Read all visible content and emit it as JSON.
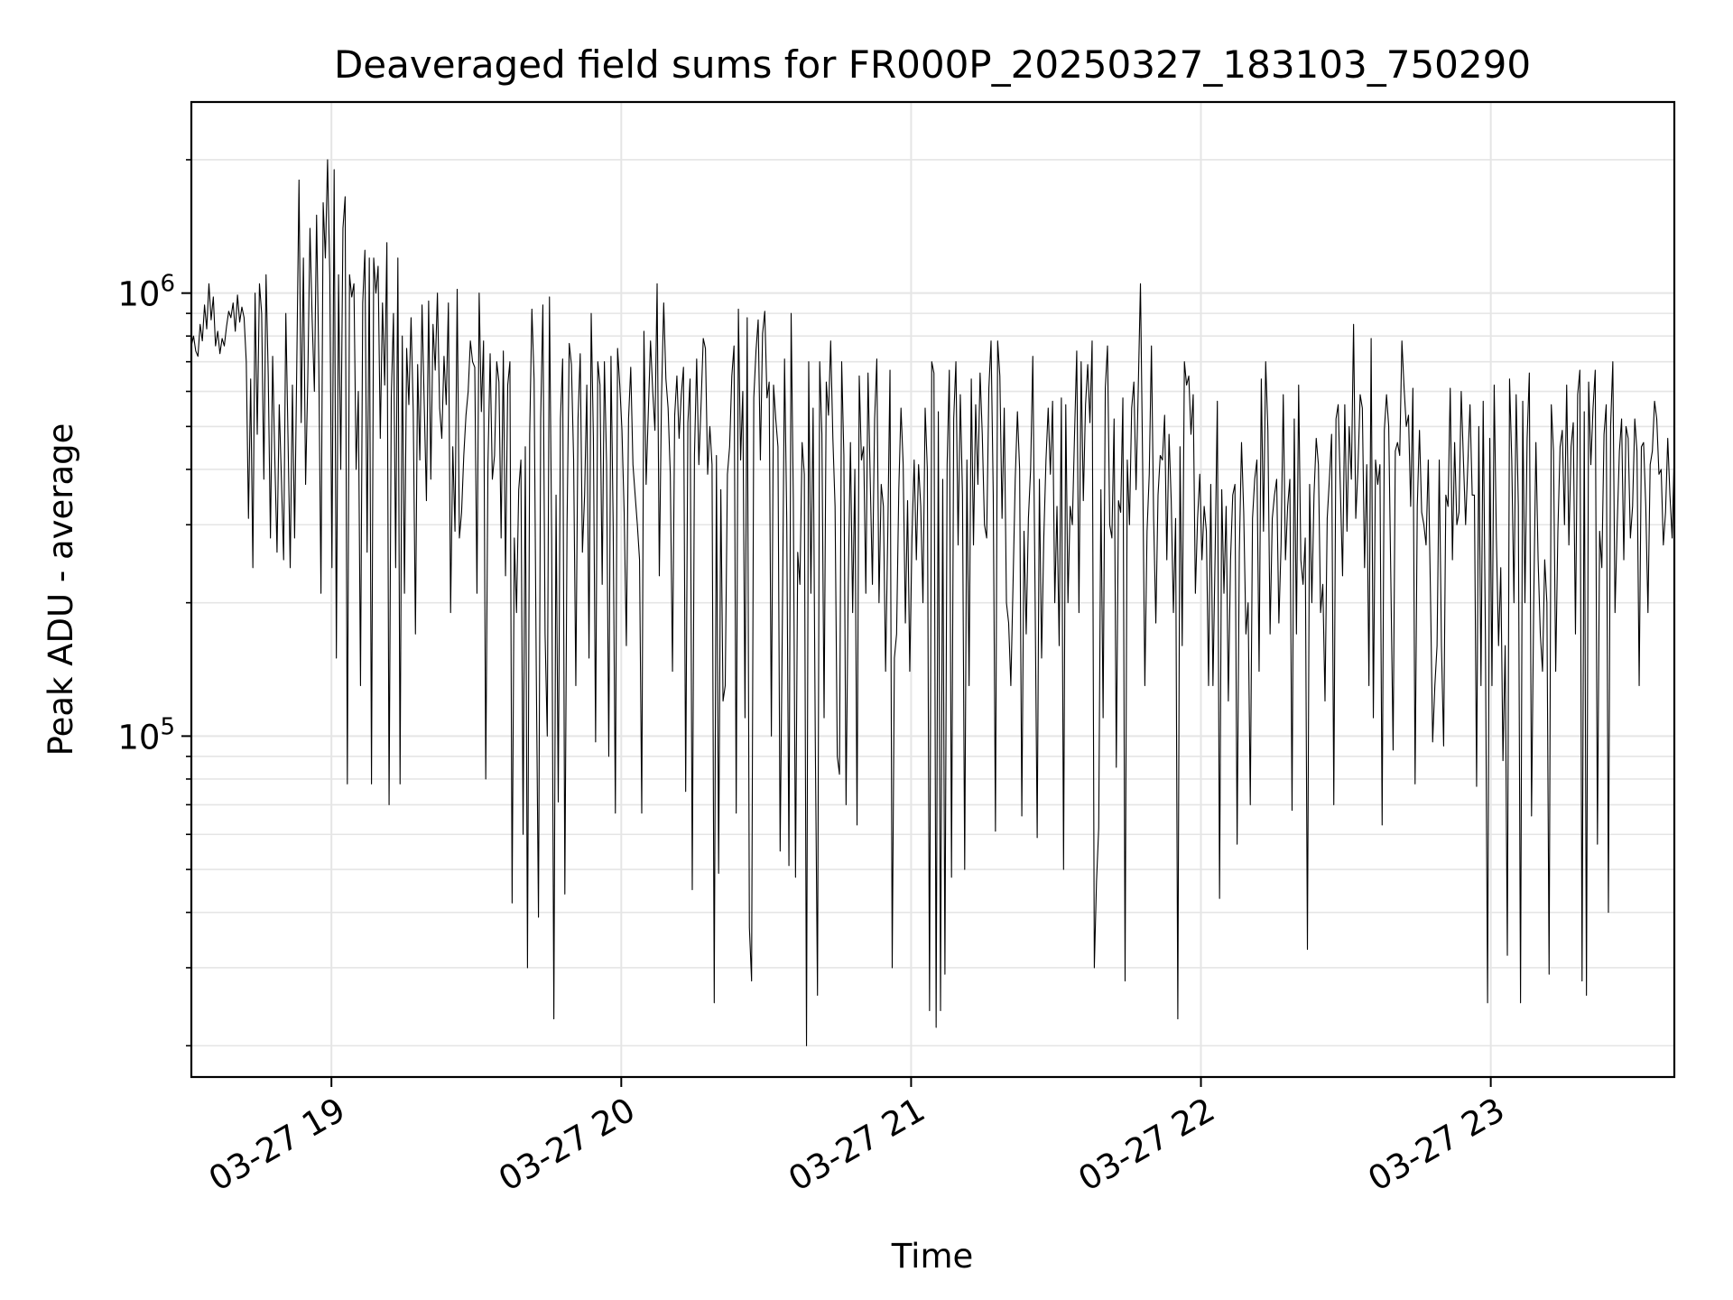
{
  "chart_data": {
    "type": "line",
    "title": "Deaveraged field sums for FR000P_20250327_183103_750290",
    "xlabel": "Time",
    "ylabel": "Peak ADU - average",
    "yscale": "log",
    "ylim": [
      17000,
      2700000
    ],
    "xlim": [
      "2025-03-27 18:31",
      "2025-03-27 23:38"
    ],
    "grid": true,
    "line_color": "#000000",
    "grid_color": "#e5e5e5",
    "x_ticks": [
      {
        "value": "2025-03-27 19:00",
        "label": "03-27 19"
      },
      {
        "value": "2025-03-27 20:00",
        "label": "03-27 20"
      },
      {
        "value": "2025-03-27 21:00",
        "label": "03-27 21"
      },
      {
        "value": "2025-03-27 22:00",
        "label": "03-27 22"
      },
      {
        "value": "2025-03-27 23:00",
        "label": "03-27 23"
      }
    ],
    "y_major_ticks": [
      {
        "value": 100000,
        "base": "10",
        "exp": "5"
      },
      {
        "value": 1000000,
        "base": "10",
        "exp": "6"
      }
    ],
    "series": [
      {
        "x_start": "2025-03-27 18:31",
        "x_end": "2025-03-27 23:38",
        "values": [
          760000,
          800000,
          740000,
          720000,
          850000,
          780000,
          940000,
          830000,
          1050000,
          870000,
          980000,
          760000,
          820000,
          730000,
          790000,
          760000,
          840000,
          910000,
          880000,
          950000,
          820000,
          990000,
          860000,
          930000,
          880000,
          700000,
          310000,
          640000,
          240000,
          1000000,
          480000,
          1050000,
          900000,
          380000,
          1100000,
          650000,
          280000,
          720000,
          420000,
          260000,
          560000,
          380000,
          250000,
          900000,
          470000,
          240000,
          620000,
          280000,
          700000,
          1800000,
          510000,
          1200000,
          370000,
          640000,
          1400000,
          870000,
          600000,
          1500000,
          700000,
          210000,
          1600000,
          1200000,
          2000000,
          1100000,
          240000,
          1900000,
          150000,
          1100000,
          400000,
          1400000,
          1650000,
          78000,
          1100000,
          980000,
          1050000,
          400000,
          600000,
          130000,
          950000,
          1250000,
          260000,
          1200000,
          78000,
          1200000,
          1000000,
          1150000,
          470000,
          950000,
          620000,
          1300000,
          70000,
          580000,
          900000,
          240000,
          1200000,
          78000,
          800000,
          210000,
          750000,
          560000,
          880000,
          540000,
          170000,
          690000,
          420000,
          940000,
          560000,
          340000,
          960000,
          380000,
          850000,
          670000,
          1000000,
          550000,
          470000,
          720000,
          560000,
          950000,
          190000,
          450000,
          290000,
          1020000,
          280000,
          320000,
          430000,
          530000,
          600000,
          780000,
          700000,
          680000,
          210000,
          1000000,
          540000,
          780000,
          80000,
          410000,
          730000,
          380000,
          430000,
          700000,
          630000,
          280000,
          740000,
          230000,
          620000,
          700000,
          42000,
          280000,
          190000,
          360000,
          420000,
          60000,
          450000,
          30000,
          480000,
          920000,
          640000,
          140000,
          39000,
          520000,
          940000,
          170000,
          100000,
          980000,
          280000,
          23000,
          350000,
          71000,
          520000,
          710000,
          44000,
          300000,
          770000,
          690000,
          420000,
          130000,
          520000,
          730000,
          260000,
          350000,
          620000,
          150000,
          900000,
          470000,
          97000,
          700000,
          620000,
          220000,
          700000,
          410000,
          90000,
          720000,
          300000,
          67000,
          750000,
          620000,
          490000,
          320000,
          160000,
          520000,
          680000,
          410000,
          350000,
          300000,
          250000,
          67000,
          820000,
          370000,
          540000,
          780000,
          600000,
          490000,
          1050000,
          230000,
          580000,
          950000,
          640000,
          550000,
          390000,
          140000,
          530000,
          650000,
          470000,
          590000,
          680000,
          75000,
          510000,
          640000,
          45000,
          430000,
          710000,
          410000,
          560000,
          790000,
          750000,
          390000,
          500000,
          410000,
          25000,
          430000,
          49000,
          360000,
          120000,
          130000,
          390000,
          450000,
          650000,
          760000,
          67000,
          920000,
          420000,
          600000,
          110000,
          880000,
          37000,
          28000,
          580000,
          740000,
          870000,
          420000,
          810000,
          910000,
          580000,
          630000,
          100000,
          620000,
          520000,
          450000,
          55000,
          180000,
          710000,
          310000,
          51000,
          900000,
          340000,
          48000,
          260000,
          220000,
          460000,
          390000,
          20000,
          700000,
          210000,
          550000,
          97000,
          26000,
          700000,
          480000,
          110000,
          630000,
          530000,
          780000,
          470000,
          330000,
          90000,
          82000,
          700000,
          430000,
          70000,
          220000,
          460000,
          190000,
          400000,
          63000,
          650000,
          420000,
          450000,
          210000,
          660000,
          380000,
          220000,
          520000,
          710000,
          200000,
          370000,
          330000,
          140000,
          290000,
          670000,
          30000,
          150000,
          170000,
          360000,
          550000,
          410000,
          180000,
          340000,
          140000,
          280000,
          420000,
          250000,
          410000,
          330000,
          200000,
          550000,
          400000,
          24000,
          700000,
          660000,
          22000,
          540000,
          24000,
          380000,
          29000,
          410000,
          670000,
          48000,
          520000,
          700000,
          270000,
          590000,
          350000,
          50000,
          420000,
          130000,
          640000,
          270000,
          560000,
          370000,
          660000,
          480000,
          300000,
          280000,
          610000,
          780000,
          350000,
          61000,
          780000,
          650000,
          310000,
          550000,
          200000,
          180000,
          130000,
          220000,
          380000,
          540000,
          400000,
          66000,
          290000,
          170000,
          310000,
          400000,
          720000,
          220000,
          59000,
          380000,
          150000,
          280000,
          420000,
          550000,
          390000,
          570000,
          200000,
          330000,
          160000,
          580000,
          50000,
          560000,
          200000,
          330000,
          300000,
          480000,
          740000,
          190000,
          700000,
          340000,
          560000,
          690000,
          510000,
          780000,
          30000,
          47000,
          62000,
          360000,
          110000,
          610000,
          760000,
          300000,
          280000,
          520000,
          85000,
          340000,
          320000,
          580000,
          28000,
          420000,
          300000,
          550000,
          630000,
          360000,
          610000,
          1050000,
          410000,
          130000,
          290000,
          390000,
          760000,
          310000,
          180000,
          350000,
          430000,
          420000,
          530000,
          250000,
          480000,
          340000,
          190000,
          310000,
          23000,
          450000,
          160000,
          700000,
          620000,
          650000,
          480000,
          590000,
          210000,
          310000,
          390000,
          250000,
          330000,
          290000,
          130000,
          370000,
          130000,
          260000,
          570000,
          43000,
          360000,
          210000,
          330000,
          120000,
          250000,
          350000,
          370000,
          57000,
          260000,
          460000,
          320000,
          170000,
          200000,
          70000,
          310000,
          380000,
          420000,
          140000,
          640000,
          290000,
          700000,
          490000,
          170000,
          310000,
          350000,
          380000,
          180000,
          270000,
          590000,
          250000,
          330000,
          380000,
          68000,
          520000,
          170000,
          620000,
          250000,
          220000,
          280000,
          33000,
          370000,
          200000,
          350000,
          470000,
          410000,
          190000,
          220000,
          120000,
          310000,
          380000,
          480000,
          70000,
          520000,
          560000,
          360000,
          230000,
          560000,
          290000,
          500000,
          380000,
          850000,
          310000,
          400000,
          590000,
          550000,
          240000,
          410000,
          130000,
          790000,
          110000,
          420000,
          370000,
          410000,
          63000,
          490000,
          590000,
          500000,
          220000,
          93000,
          440000,
          460000,
          430000,
          780000,
          610000,
          500000,
          530000,
          330000,
          610000,
          78000,
          330000,
          490000,
          320000,
          300000,
          270000,
          420000,
          210000,
          97000,
          130000,
          160000,
          420000,
          160000,
          95000,
          350000,
          330000,
          610000,
          250000,
          460000,
          300000,
          320000,
          600000,
          420000,
          300000,
          410000,
          560000,
          350000,
          350000,
          77000,
          500000,
          130000,
          570000,
          170000,
          25000,
          470000,
          130000,
          620000,
          280000,
          160000,
          240000,
          88000,
          160000,
          32000,
          640000,
          420000,
          200000,
          590000,
          330000,
          25000,
          570000,
          200000,
          470000,
          660000,
          66000,
          200000,
          460000,
          250000,
          170000,
          140000,
          250000,
          200000,
          29000,
          560000,
          440000,
          140000,
          290000,
          450000,
          490000,
          300000,
          620000,
          270000,
          450000,
          510000,
          170000,
          590000,
          670000,
          28000,
          540000,
          26000,
          630000,
          410000,
          550000,
          670000,
          57000,
          290000,
          240000,
          480000,
          560000,
          40000,
          500000,
          700000,
          190000,
          300000,
          440000,
          520000,
          250000,
          500000,
          470000,
          280000,
          330000,
          520000,
          440000,
          130000,
          450000,
          460000,
          330000,
          190000,
          410000,
          440000,
          570000,
          520000,
          390000,
          400000,
          270000,
          320000,
          470000,
          350000,
          280000,
          440000
        ]
      }
    ]
  }
}
